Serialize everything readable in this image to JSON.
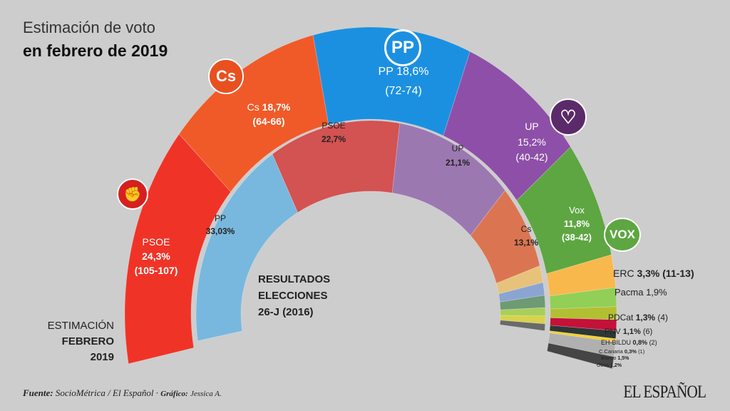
{
  "title": {
    "line1": "Estimación de voto",
    "line2": "en febrero de 2019"
  },
  "estimation_label": {
    "l1": "ESTIMACIÓN",
    "l2": "FEBRERO",
    "l3": "2019"
  },
  "results_label": {
    "l1": "RESULTADOS",
    "l2": "ELECCIONES",
    "l3": "26-J (2016)"
  },
  "footer": {
    "source_label": "Fuente:",
    "source": "SocioMétrica / El Español ·",
    "credit_label": "Gráfico:",
    "credit": "Jessica A."
  },
  "brand": "EL ESPAÑOL",
  "logos": {
    "psoe": "psoe-rose-fist-logo",
    "cs": "Cs",
    "pp": "PP",
    "up": "up-heart-logo",
    "vox": "VOX"
  },
  "chart_data": [
    {
      "type": "donut-horseshoe",
      "ring": "outer",
      "caption": "ESTIMACIÓN FEBRERO 2019",
      "segments": [
        {
          "party": "PSOE",
          "value": 24.3,
          "pct": "24,3%",
          "seats": "(105-107)",
          "color": "#f03327"
        },
        {
          "party": "Cs",
          "value": 18.7,
          "pct": "18,7%",
          "seats": "(64-66)",
          "color": "#f05a28"
        },
        {
          "party": "PP",
          "value": 18.6,
          "pct": "18,6%",
          "seats": "(72-74)",
          "color": "#1c90e0"
        },
        {
          "party": "UP",
          "value": 15.2,
          "pct": "15,2%",
          "seats": "(40-42)",
          "color": "#8e4fa8"
        },
        {
          "party": "Vox",
          "value": 11.8,
          "pct": "11,8%",
          "seats": "(38-42)",
          "color": "#5ea642"
        },
        {
          "party": "ERC",
          "value": 3.3,
          "pct": "3,3%",
          "seats": "(11-13)",
          "color": "#f9b84c"
        },
        {
          "party": "Pacma",
          "value": 1.9,
          "pct": "1,9%",
          "seats": "",
          "color": "#91cf57"
        },
        {
          "party": "PDCat",
          "value": 1.3,
          "pct": "1,3%",
          "seats": "(4)",
          "color": "#b3bf32"
        },
        {
          "party": "PNV",
          "value": 1.1,
          "pct": "1,1%",
          "seats": "(6)",
          "color": "#c4113a"
        },
        {
          "party": "EH-BILDU",
          "value": 0.8,
          "pct": "0,8%",
          "seats": "(2)",
          "color": "#2f3636"
        },
        {
          "party": "C.Canaria",
          "value": 0.3,
          "pct": "0,3%",
          "seats": "(1)",
          "color": "#f4d12e"
        },
        {
          "party": "Blanco",
          "value": 1.5,
          "pct": "1,5%",
          "seats": "",
          "color": "#b0b0b0"
        },
        {
          "party": "Otros",
          "value": 1.2,
          "pct": "1,2%",
          "seats": "",
          "color": "#454545"
        }
      ]
    },
    {
      "type": "donut-horseshoe",
      "ring": "inner",
      "caption": "RESULTADOS ELECCIONES 26-J (2016)",
      "segments": [
        {
          "party": "PP",
          "value": 33.03,
          "pct": "33,03%",
          "color": "#78b8de"
        },
        {
          "party": "PSOE",
          "value": 22.7,
          "pct": "22,7%",
          "color": "#d35252"
        },
        {
          "party": "UP",
          "value": 21.1,
          "pct": "21,1%",
          "color": "#9c78b1"
        },
        {
          "party": "Cs",
          "value": 13.1,
          "pct": "13,1%",
          "color": "#db7551"
        },
        {
          "party": "",
          "value": 2.6,
          "color": "#e6c27a"
        },
        {
          "party": "",
          "value": 2.0,
          "color": "#8ba5d3"
        },
        {
          "party": "",
          "value": 1.9,
          "color": "#6e9a74"
        },
        {
          "party": "",
          "value": 1.3,
          "color": "#a8cf5a"
        },
        {
          "party": "",
          "value": 1.2,
          "color": "#d8d24e"
        },
        {
          "party": "",
          "value": 1.07,
          "color": "#6a6a6a"
        }
      ]
    }
  ]
}
